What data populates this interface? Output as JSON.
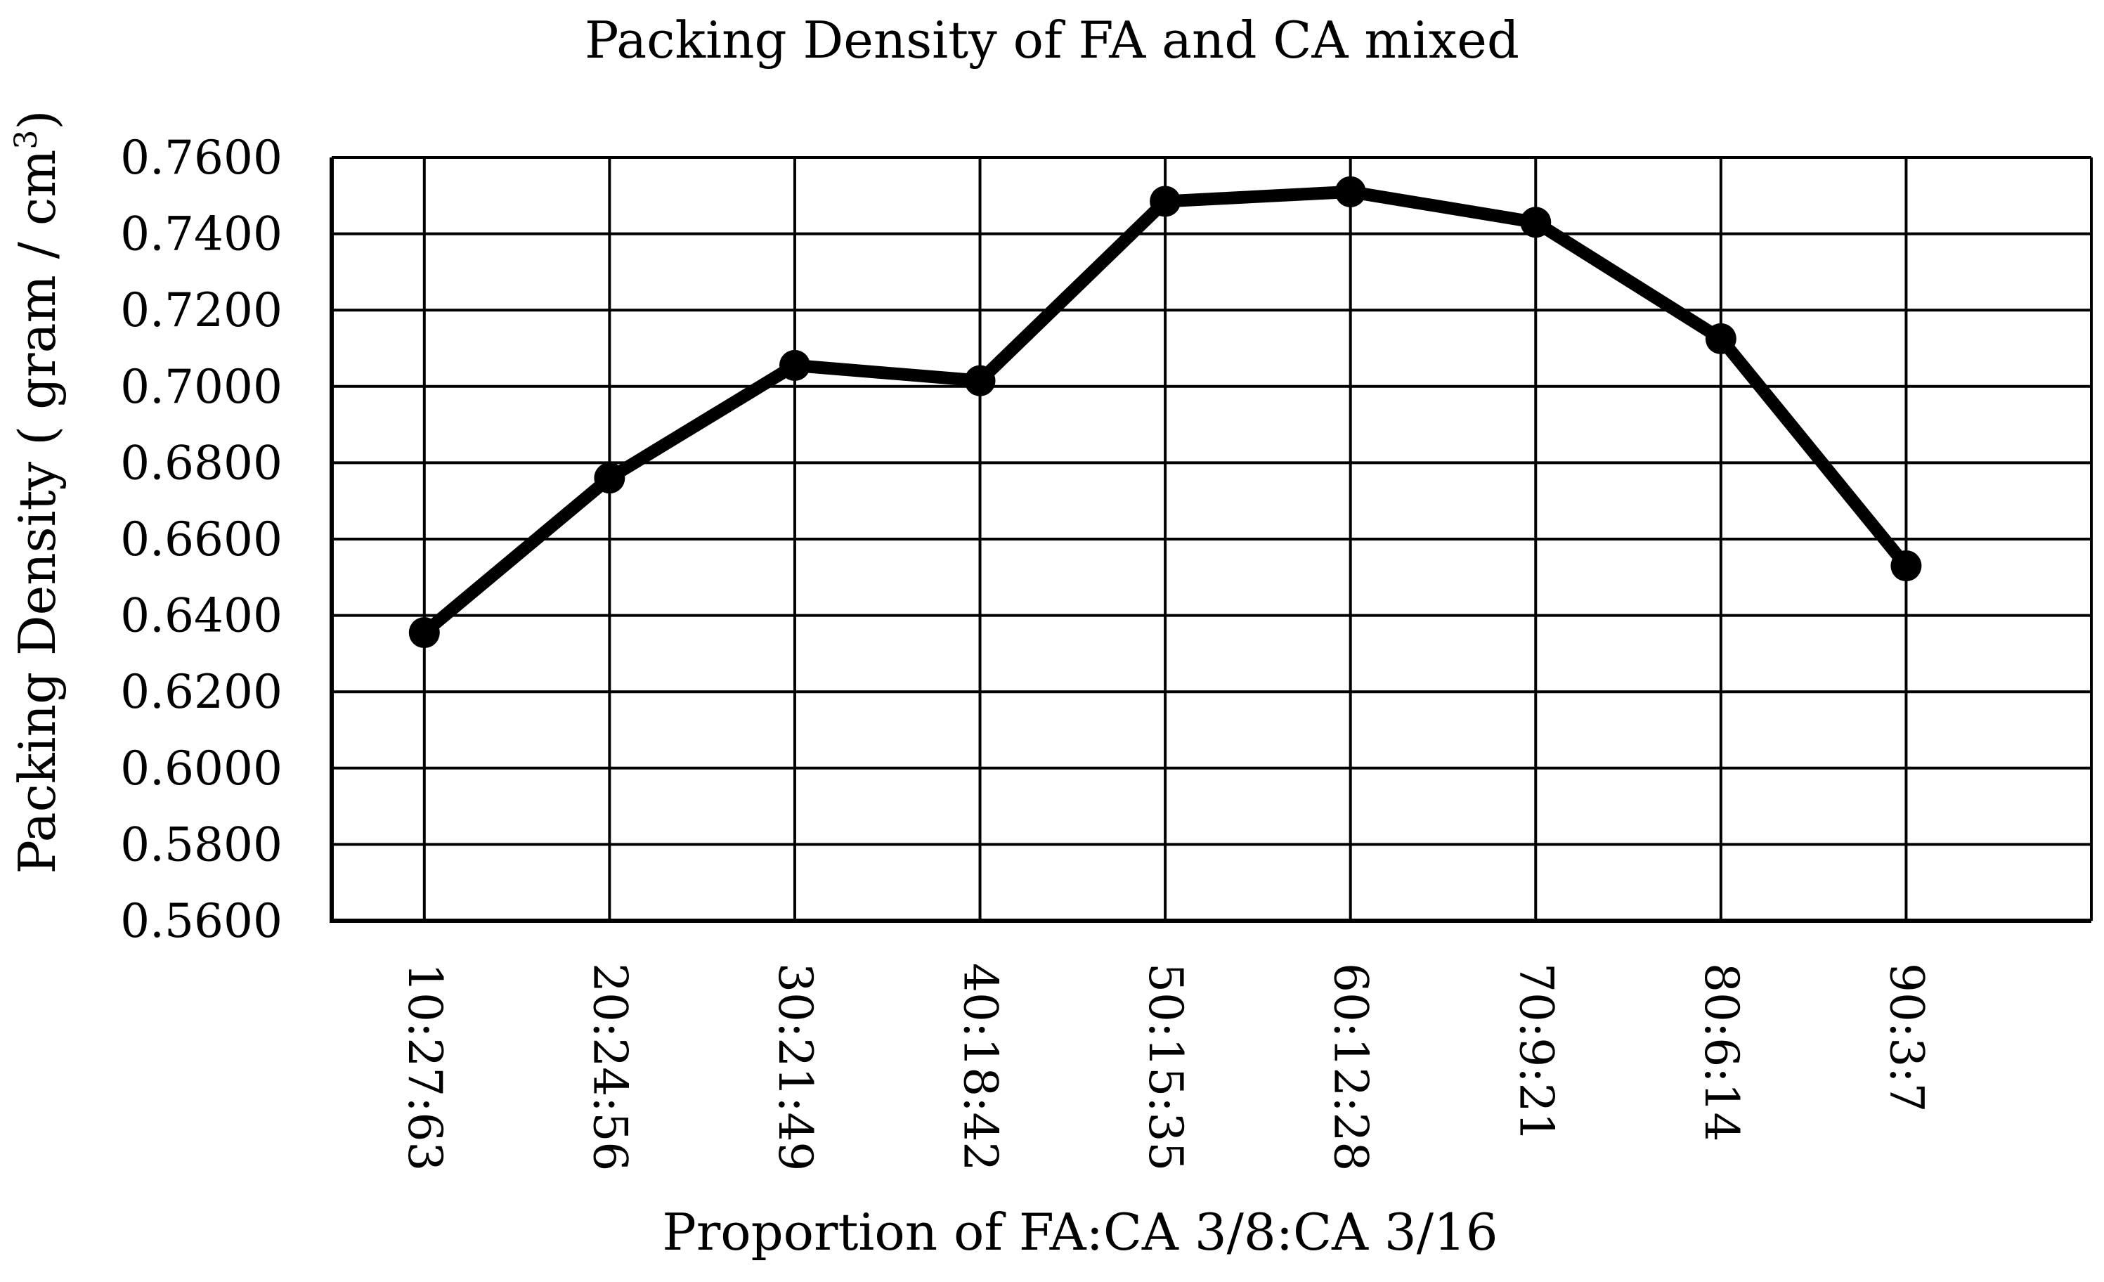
{
  "chart_data": {
    "type": "line",
    "title": "Packing Density of FA and CA mixed",
    "xlabel": "Proportion of FA:CA 3/8:CA 3/16",
    "ylabel": "Packing Density ( gram / cm",
    "ylabel_superscript": "3",
    "ylabel_close": ")",
    "categories": [
      "10:27:63",
      "20:24:56",
      "30:21:49",
      "40:18:42",
      "50:15:35",
      "60:12:28",
      "70:9:21",
      "80:6:14",
      "90:3:7"
    ],
    "series": [
      {
        "name": "Packing Density",
        "values": [
          0.6355,
          0.676,
          0.7055,
          0.7015,
          0.7485,
          0.751,
          0.743,
          0.7125,
          0.653
        ],
        "color": "#000000"
      }
    ],
    "ylim": [
      0.56,
      0.76
    ],
    "ytick_step": 0.02,
    "ytick_labels": [
      "0.5600",
      "0.5800",
      "0.6000",
      "0.6200",
      "0.6400",
      "0.6600",
      "0.6800",
      "0.7000",
      "0.7200",
      "0.7400",
      "0.7600"
    ],
    "grid": true,
    "legend": "none"
  }
}
